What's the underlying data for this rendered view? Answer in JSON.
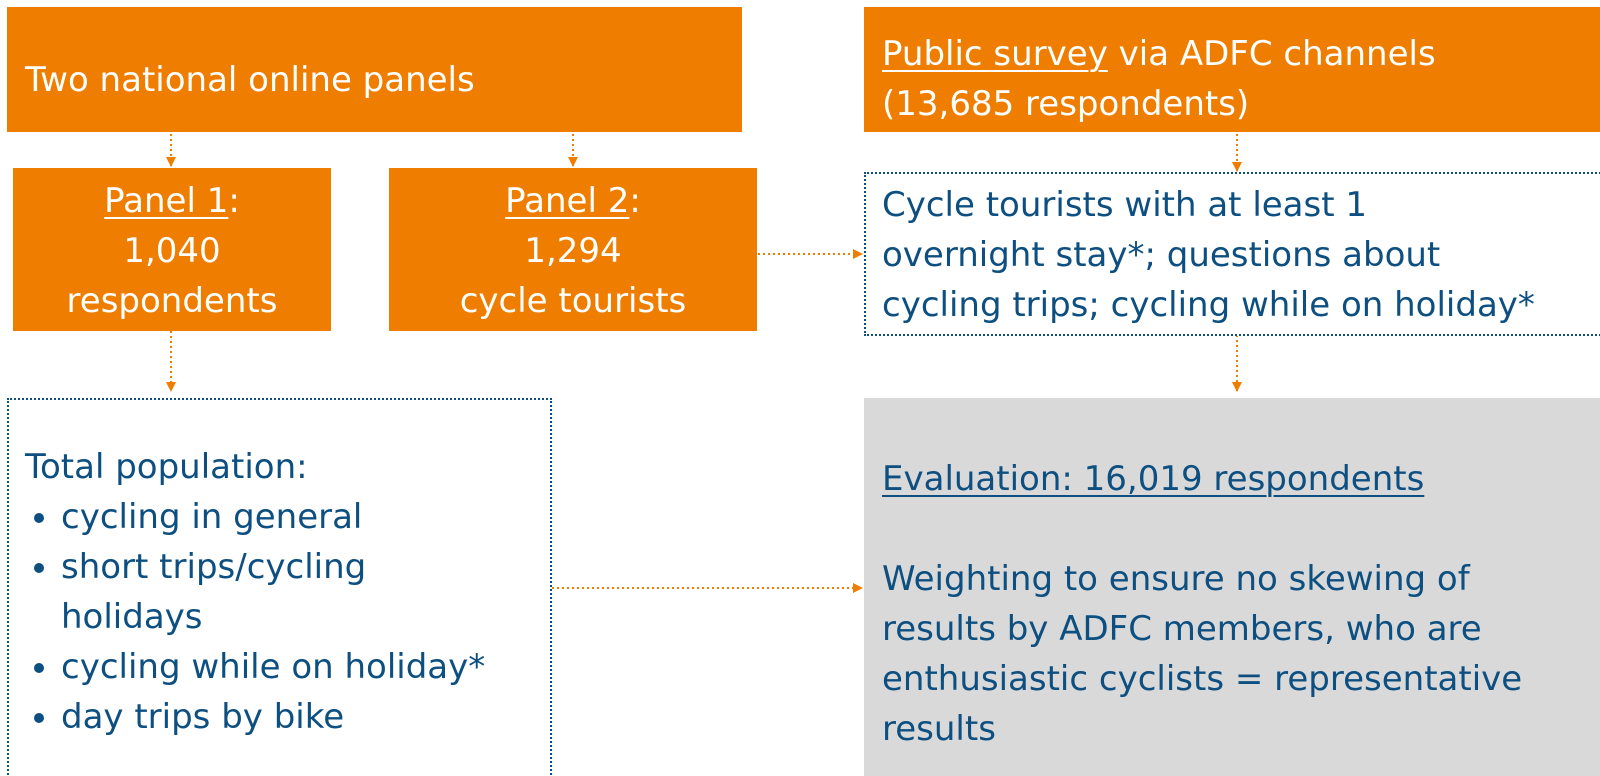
{
  "panels_box": {
    "title": "Two national online panels"
  },
  "panel_1": {
    "label": "Panel 1",
    "colon": ":",
    "count": "1,040",
    "unit": "respondents"
  },
  "panel_2": {
    "label": "Panel 2",
    "colon": ":",
    "count": "1,294",
    "unit": "cycle tourists"
  },
  "public_survey": {
    "label": "Public survey",
    "rest": " via ADFC channels",
    "count": "(13,685 respondents)"
  },
  "cycle_tourists": {
    "lines": [
      "Cycle tourists with at least 1",
      "overnight stay*; questions about",
      "cycling trips; cycling while on holiday*"
    ]
  },
  "total_population": {
    "title": "Total population:",
    "items": [
      "cycling in general",
      "short trips/cycling holidays",
      "cycling while on holiday*",
      "day trips by bike"
    ]
  },
  "evaluation": {
    "title": "Evaluation: 16,019 respondents",
    "text": "Weighting to ensure no skewing of results by ADFC members, who are enthusiastic cyclists = representative results"
  }
}
